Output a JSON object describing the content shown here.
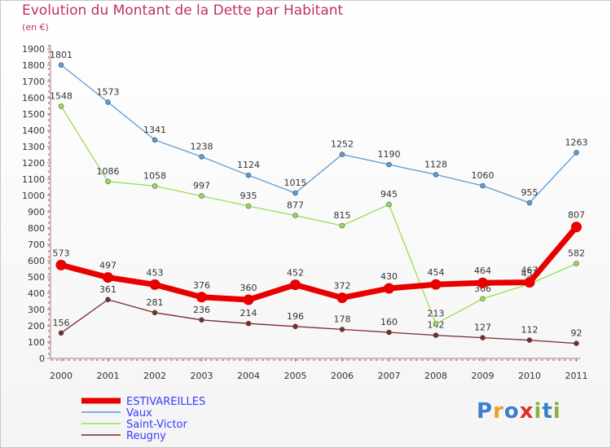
{
  "title": "Evolution du Montant de la Dette par Habitant",
  "subtitle": "(en €)",
  "logo": {
    "text": "Proxiti",
    "colors": [
      "#3a7fd0",
      "#e8a020",
      "#3a7fd0",
      "#e03030",
      "#8ab040",
      "#3a7fd0",
      "#8ab040"
    ]
  },
  "chart_data": {
    "type": "line",
    "x": [
      "2000",
      "2001",
      "2002",
      "2003",
      "2004",
      "2005",
      "2006",
      "2007",
      "2008",
      "2009",
      "2010",
      "2011"
    ],
    "ylim": [
      0,
      1900
    ],
    "yticks": [
      0,
      100,
      200,
      300,
      400,
      500,
      600,
      700,
      800,
      900,
      1000,
      1100,
      1200,
      1300,
      1400,
      1500,
      1600,
      1700,
      1800,
      1900
    ],
    "grid": false,
    "legend_position": "bottom-left",
    "series": [
      {
        "name": "ESTIVAREILLES",
        "color": "#e80000",
        "values": [
          573,
          497,
          453,
          376,
          360,
          452,
          372,
          430,
          454,
          464,
          467,
          807
        ]
      },
      {
        "name": "Vaux",
        "color": "#5a9bd5",
        "values": [
          1801,
          1573,
          1341,
          1238,
          1124,
          1015,
          1252,
          1190,
          1128,
          1060,
          955,
          1263
        ]
      },
      {
        "name": "Saint-Victor",
        "color": "#99dd55",
        "values": [
          1548,
          1086,
          1058,
          997,
          935,
          877,
          815,
          945,
          213,
          366,
          457,
          582
        ]
      },
      {
        "name": "Reugny",
        "color": "#7a2a2a",
        "values": [
          156,
          361,
          281,
          236,
          214,
          196,
          178,
          160,
          142,
          127,
          112,
          92
        ]
      }
    ]
  }
}
